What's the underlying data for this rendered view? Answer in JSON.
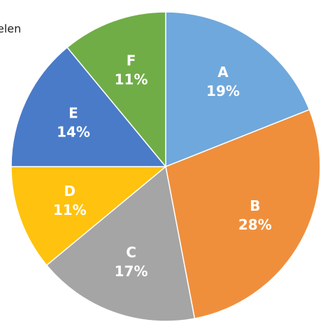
{
  "chart_data": {
    "type": "pie",
    "title": "elen",
    "categories": [
      "A",
      "B",
      "C",
      "D",
      "E",
      "F"
    ],
    "values": [
      19,
      28,
      17,
      11,
      14,
      11
    ],
    "value_labels": [
      "19%",
      "28%",
      "17%",
      "11%",
      "14%",
      "11%"
    ],
    "colors": [
      "#6FA8DC",
      "#EF8F3C",
      "#A5A5A5",
      "#FFC20E",
      "#4A7BC8",
      "#70AD47"
    ]
  }
}
